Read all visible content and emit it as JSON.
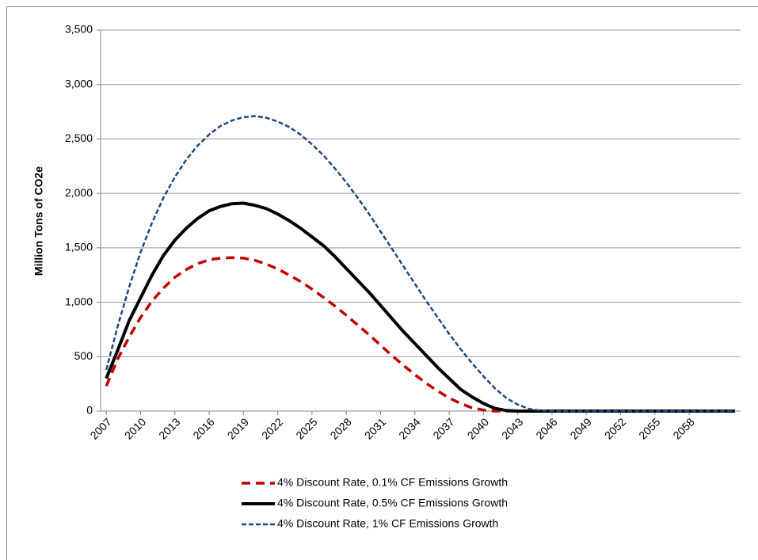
{
  "chart_data": {
    "type": "line",
    "y_label": "Million Tons of CO2e",
    "x": [
      2007,
      2008,
      2009,
      2010,
      2011,
      2012,
      2013,
      2014,
      2015,
      2016,
      2017,
      2018,
      2019,
      2020,
      2021,
      2022,
      2023,
      2024,
      2025,
      2026,
      2027,
      2028,
      2029,
      2030,
      2031,
      2032,
      2033,
      2034,
      2035,
      2036,
      2037,
      2038,
      2039,
      2040,
      2041,
      2042,
      2043,
      2044,
      2045,
      2046,
      2047,
      2048,
      2049,
      2050,
      2051,
      2052,
      2053,
      2054,
      2055,
      2056,
      2057,
      2058,
      2059,
      2060,
      2061,
      2062
    ],
    "xlim": [
      2006.5,
      2062.5
    ],
    "xticks": [
      2007,
      2010,
      2013,
      2016,
      2019,
      2022,
      2025,
      2028,
      2031,
      2034,
      2037,
      2040,
      2043,
      2046,
      2049,
      2052,
      2055,
      2058
    ],
    "ylim": [
      0,
      3500
    ],
    "yticks": [
      0,
      500,
      {
        "value": 1000,
        "label": "1,000"
      },
      {
        "value": 1500,
        "label": "1,500"
      },
      {
        "value": 2000,
        "label": "2,000"
      },
      {
        "value": 2500,
        "label": "2,500"
      },
      {
        "value": 3000,
        "label": "3,000"
      },
      {
        "value": 3500,
        "label": "3,500"
      }
    ],
    "grid": true,
    "legend": "bottom",
    "series": [
      {
        "name": "4% Discount Rate, 0.1% CF Emissions Growth",
        "color": "#c00000",
        "style": "dashed",
        "values": [
          230,
          480,
          680,
          860,
          1010,
          1130,
          1230,
          1300,
          1355,
          1390,
          1405,
          1410,
          1405,
          1385,
          1350,
          1305,
          1250,
          1190,
          1120,
          1045,
          965,
          880,
          790,
          700,
          605,
          510,
          420,
          335,
          255,
          185,
          120,
          70,
          30,
          10,
          0,
          0,
          0,
          0,
          0,
          0,
          0,
          0,
          0,
          0,
          0,
          0,
          0,
          0,
          0,
          0,
          0,
          0,
          0,
          0,
          0,
          0
        ]
      },
      {
        "name": "4% Discount Rate, 0.5% CF Emissions Growth",
        "color": "#000000",
        "style": "solid",
        "values": [
          300,
          560,
          830,
          1040,
          1250,
          1430,
          1570,
          1680,
          1770,
          1840,
          1880,
          1905,
          1910,
          1890,
          1860,
          1810,
          1750,
          1680,
          1600,
          1520,
          1420,
          1310,
          1200,
          1090,
          970,
          850,
          730,
          620,
          510,
          400,
          300,
          200,
          130,
          70,
          25,
          5,
          0,
          0,
          0,
          0,
          0,
          0,
          0,
          0,
          0,
          0,
          0,
          0,
          0,
          0,
          0,
          0,
          0,
          0,
          0,
          0
        ]
      },
      {
        "name": "4% Discount Rate, 1% CF Emissions Growth",
        "color": "#1f497d",
        "style": "dotted",
        "values": [
          380,
          780,
          1140,
          1460,
          1730,
          1960,
          2150,
          2310,
          2440,
          2540,
          2620,
          2670,
          2700,
          2710,
          2695,
          2660,
          2610,
          2540,
          2450,
          2350,
          2230,
          2100,
          1960,
          1810,
          1650,
          1490,
          1330,
          1170,
          1010,
          860,
          710,
          570,
          440,
          320,
          210,
          120,
          60,
          20,
          5,
          0,
          0,
          0,
          0,
          0,
          0,
          0,
          0,
          0,
          0,
          0,
          0,
          0,
          0,
          0,
          0,
          0
        ]
      }
    ]
  }
}
